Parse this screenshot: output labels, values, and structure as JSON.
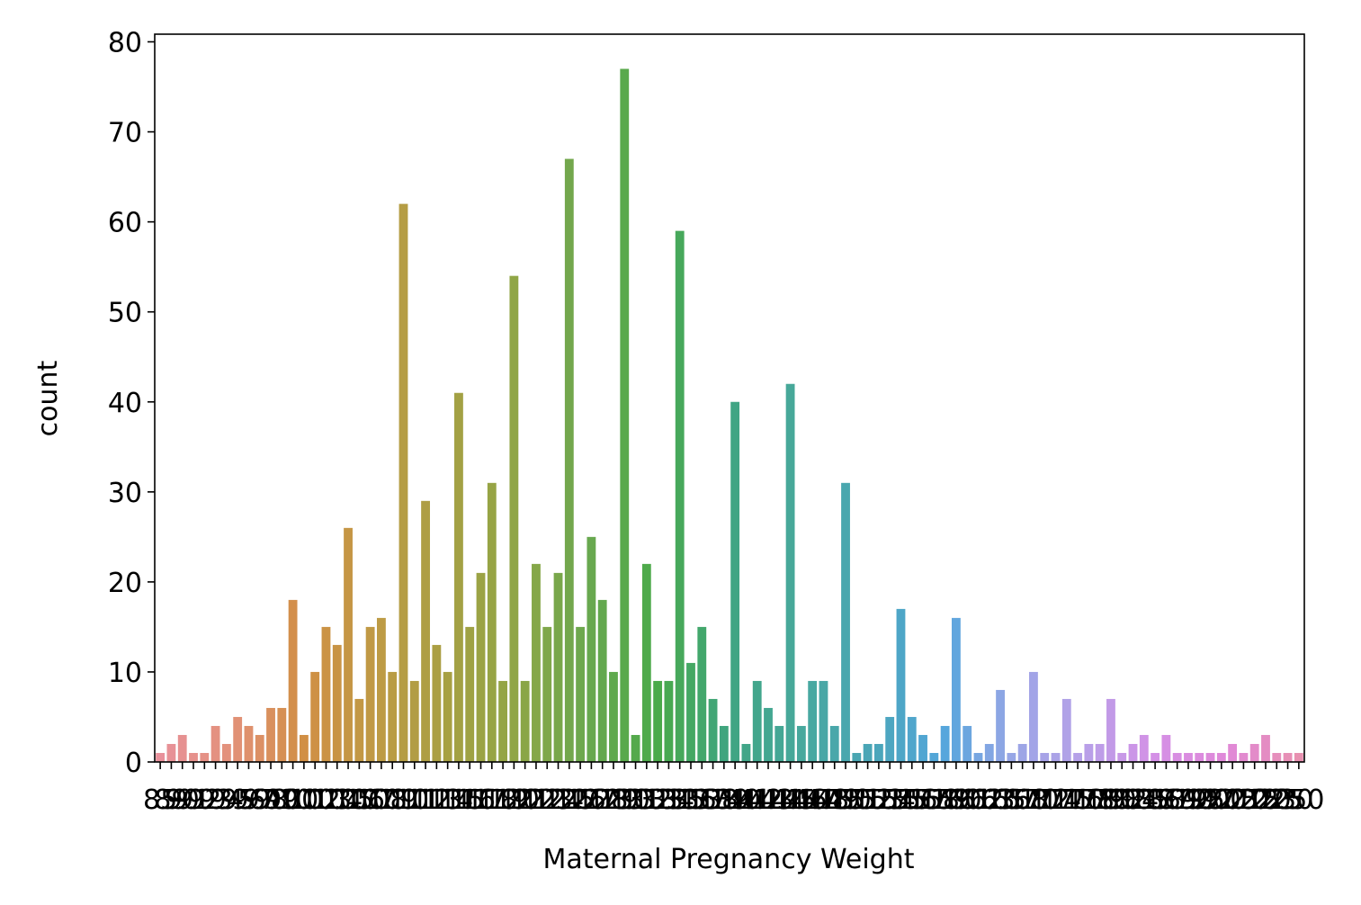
{
  "chart_data": {
    "type": "bar",
    "xlabel": "Maternal Pregnancy Weight",
    "ylabel": "count",
    "categories": [
      "85",
      "89",
      "90",
      "91",
      "92",
      "93",
      "94",
      "95",
      "96",
      "97",
      "98",
      "99",
      "100",
      "101",
      "102",
      "103",
      "104",
      "105",
      "106",
      "107",
      "108",
      "109",
      "110",
      "111",
      "112",
      "113",
      "114",
      "115",
      "116",
      "117",
      "118",
      "119",
      "120",
      "121",
      "122",
      "123",
      "124",
      "125",
      "126",
      "127",
      "128",
      "129",
      "130",
      "131",
      "132",
      "133",
      "134",
      "135",
      "136",
      "137",
      "138",
      "139",
      "140",
      "141",
      "142",
      "143",
      "144",
      "145",
      "146",
      "147",
      "148",
      "149",
      "150",
      "151",
      "152",
      "153",
      "154",
      "155",
      "156",
      "157",
      "158",
      "159",
      "160",
      "161",
      "162",
      "163",
      "165",
      "167",
      "168",
      "170",
      "172",
      "174",
      "175",
      "176",
      "178",
      "179",
      "180",
      "182",
      "184",
      "185",
      "186",
      "187",
      "189",
      "190",
      "195",
      "197",
      "200",
      "205",
      "210",
      "215",
      "220",
      "225",
      "230",
      "250"
    ],
    "values": [
      1,
      2,
      3,
      1,
      1,
      4,
      2,
      5,
      4,
      3,
      6,
      6,
      18,
      3,
      10,
      15,
      13,
      26,
      7,
      15,
      16,
      10,
      62,
      9,
      29,
      13,
      10,
      41,
      15,
      21,
      31,
      9,
      54,
      9,
      22,
      15,
      21,
      67,
      15,
      25,
      18,
      10,
      77,
      3,
      22,
      9,
      9,
      59,
      11,
      15,
      7,
      4,
      40,
      2,
      9,
      6,
      4,
      42,
      4,
      9,
      9,
      4,
      31,
      1,
      2,
      2,
      5,
      17,
      5,
      3,
      1,
      4,
      16,
      4,
      1,
      2,
      8,
      1,
      2,
      10,
      1,
      1,
      7,
      1,
      2,
      2,
      7,
      1,
      2,
      3,
      1,
      3,
      1,
      1,
      1,
      1,
      1,
      2,
      1,
      2,
      3,
      1,
      1,
      1
    ],
    "palette": [
      "#e8919b",
      "#e3917a",
      "#d18f45",
      "#bf9a45",
      "#a8a043",
      "#8fa646",
      "#6aa84f",
      "#4aaa4a",
      "#3fa582",
      "#48a89d",
      "#4aa6b8",
      "#54a6dc",
      "#9aa6e6",
      "#b8a0e8",
      "#d590e6",
      "#e088d8",
      "#e890b0"
    ],
    "ylim": [
      0,
      80.85
    ],
    "yticks": [
      0,
      10,
      20,
      30,
      40,
      50,
      60,
      70,
      80
    ]
  }
}
